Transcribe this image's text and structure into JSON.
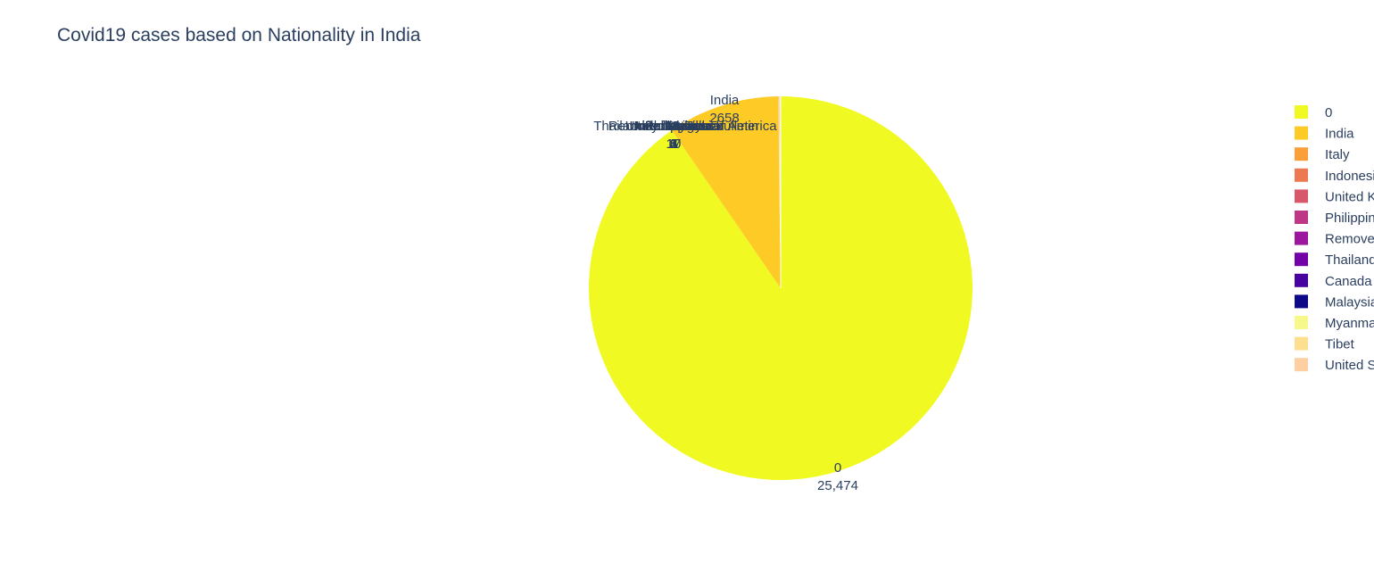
{
  "chart_data": {
    "type": "pie",
    "title": "Covid19 cases based on Nationality in India",
    "slices": [
      {
        "label": "0",
        "value": 25474,
        "value_text": "25,474",
        "color": "#f0f921"
      },
      {
        "label": "India",
        "value": 2658,
        "value_text": "2658",
        "color": "#fdca26"
      },
      {
        "label": "Italy",
        "value": 17,
        "value_text": "17",
        "color": "#fb9f3a"
      },
      {
        "label": "Indonesia",
        "value": 10,
        "value_text": "10",
        "color": "#ed7953"
      },
      {
        "label": "United Kingdom",
        "value": 8,
        "value_text": "8",
        "color": "#d8576b"
      },
      {
        "label": "Philippines",
        "value": 6,
        "value_text": "6",
        "color": "#bd3786"
      },
      {
        "label": "Removed in state bulletin",
        "value": 3,
        "value_text": "3",
        "color": "#9c179e"
      },
      {
        "label": "Thailand",
        "value": 2,
        "value_text": "2",
        "color": "#7201a8"
      },
      {
        "label": "Canada",
        "value": 1,
        "value_text": "1",
        "color": "#46039f"
      },
      {
        "label": "Malaysia",
        "value": 1,
        "value_text": "1",
        "color": "#0d0887"
      },
      {
        "label": "Myanmar",
        "value": 1,
        "value_text": "1",
        "color": "#f7f88a"
      },
      {
        "label": "Tibet",
        "value": 1,
        "value_text": "1",
        "color": "#fde08f"
      },
      {
        "label": "United States of America",
        "value": 1,
        "value_text": "1",
        "color": "#fecfa0"
      }
    ],
    "legend_placement": "right"
  }
}
